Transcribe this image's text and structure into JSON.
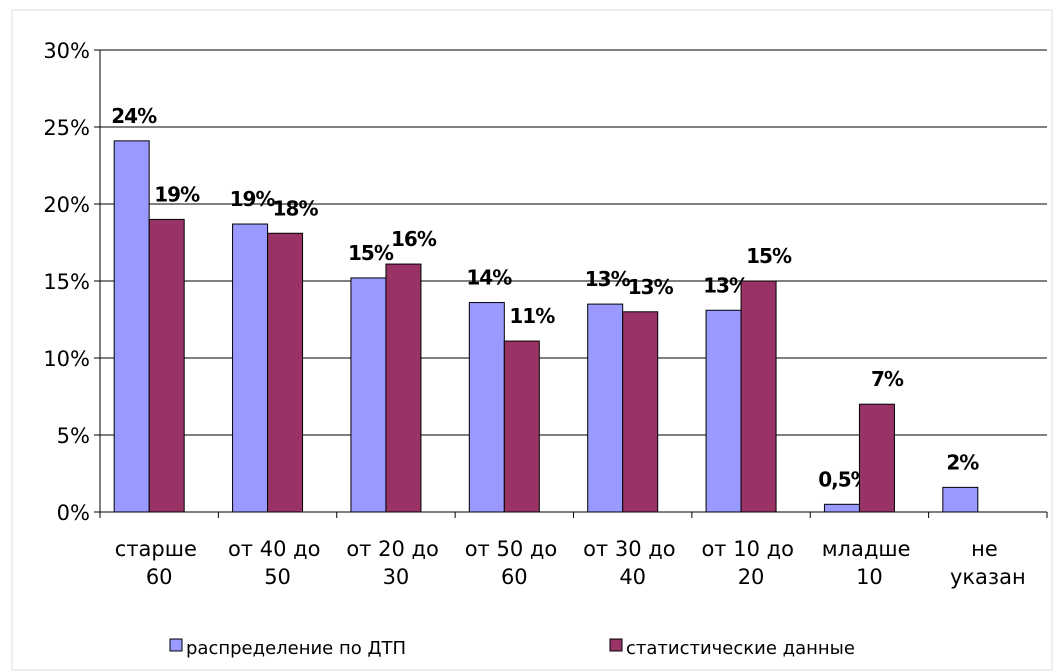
{
  "chart_data": {
    "type": "bar",
    "categories": [
      "старше 60",
      "от 40 до 50",
      "от 20 до 30",
      "от 50 до 60",
      "от 30 до 40",
      "от 10 до 20",
      "младше 10",
      "не указан"
    ],
    "series": [
      {
        "name": "распределение по ДТП",
        "color": "#9999ff",
        "values": [
          24.1,
          18.7,
          15.2,
          13.6,
          13.5,
          13.1,
          0.5,
          1.6
        ],
        "value_labels": [
          "24%",
          "19%",
          "15%",
          "14%",
          "13%",
          "13%",
          "0,5%",
          "2%"
        ]
      },
      {
        "name": "статистические данные",
        "color": "#993366",
        "values": [
          19,
          18.1,
          16.1,
          11.1,
          13,
          15,
          7,
          null
        ],
        "value_labels": [
          "19%",
          "18%",
          "16%",
          "11%",
          "13%",
          "15%",
          "7%",
          null
        ]
      }
    ],
    "ylim": [
      0,
      30
    ],
    "yticks": [
      {
        "value": 0,
        "label": "0%"
      },
      {
        "value": 5,
        "label": "5%"
      },
      {
        "value": 10,
        "label": "10%"
      },
      {
        "value": 15,
        "label": "15%"
      },
      {
        "value": 20,
        "label": "20%"
      },
      {
        "value": 25,
        "label": "25%"
      },
      {
        "value": 30,
        "label": "30%"
      }
    ],
    "grid": true,
    "legend": "bottom"
  }
}
